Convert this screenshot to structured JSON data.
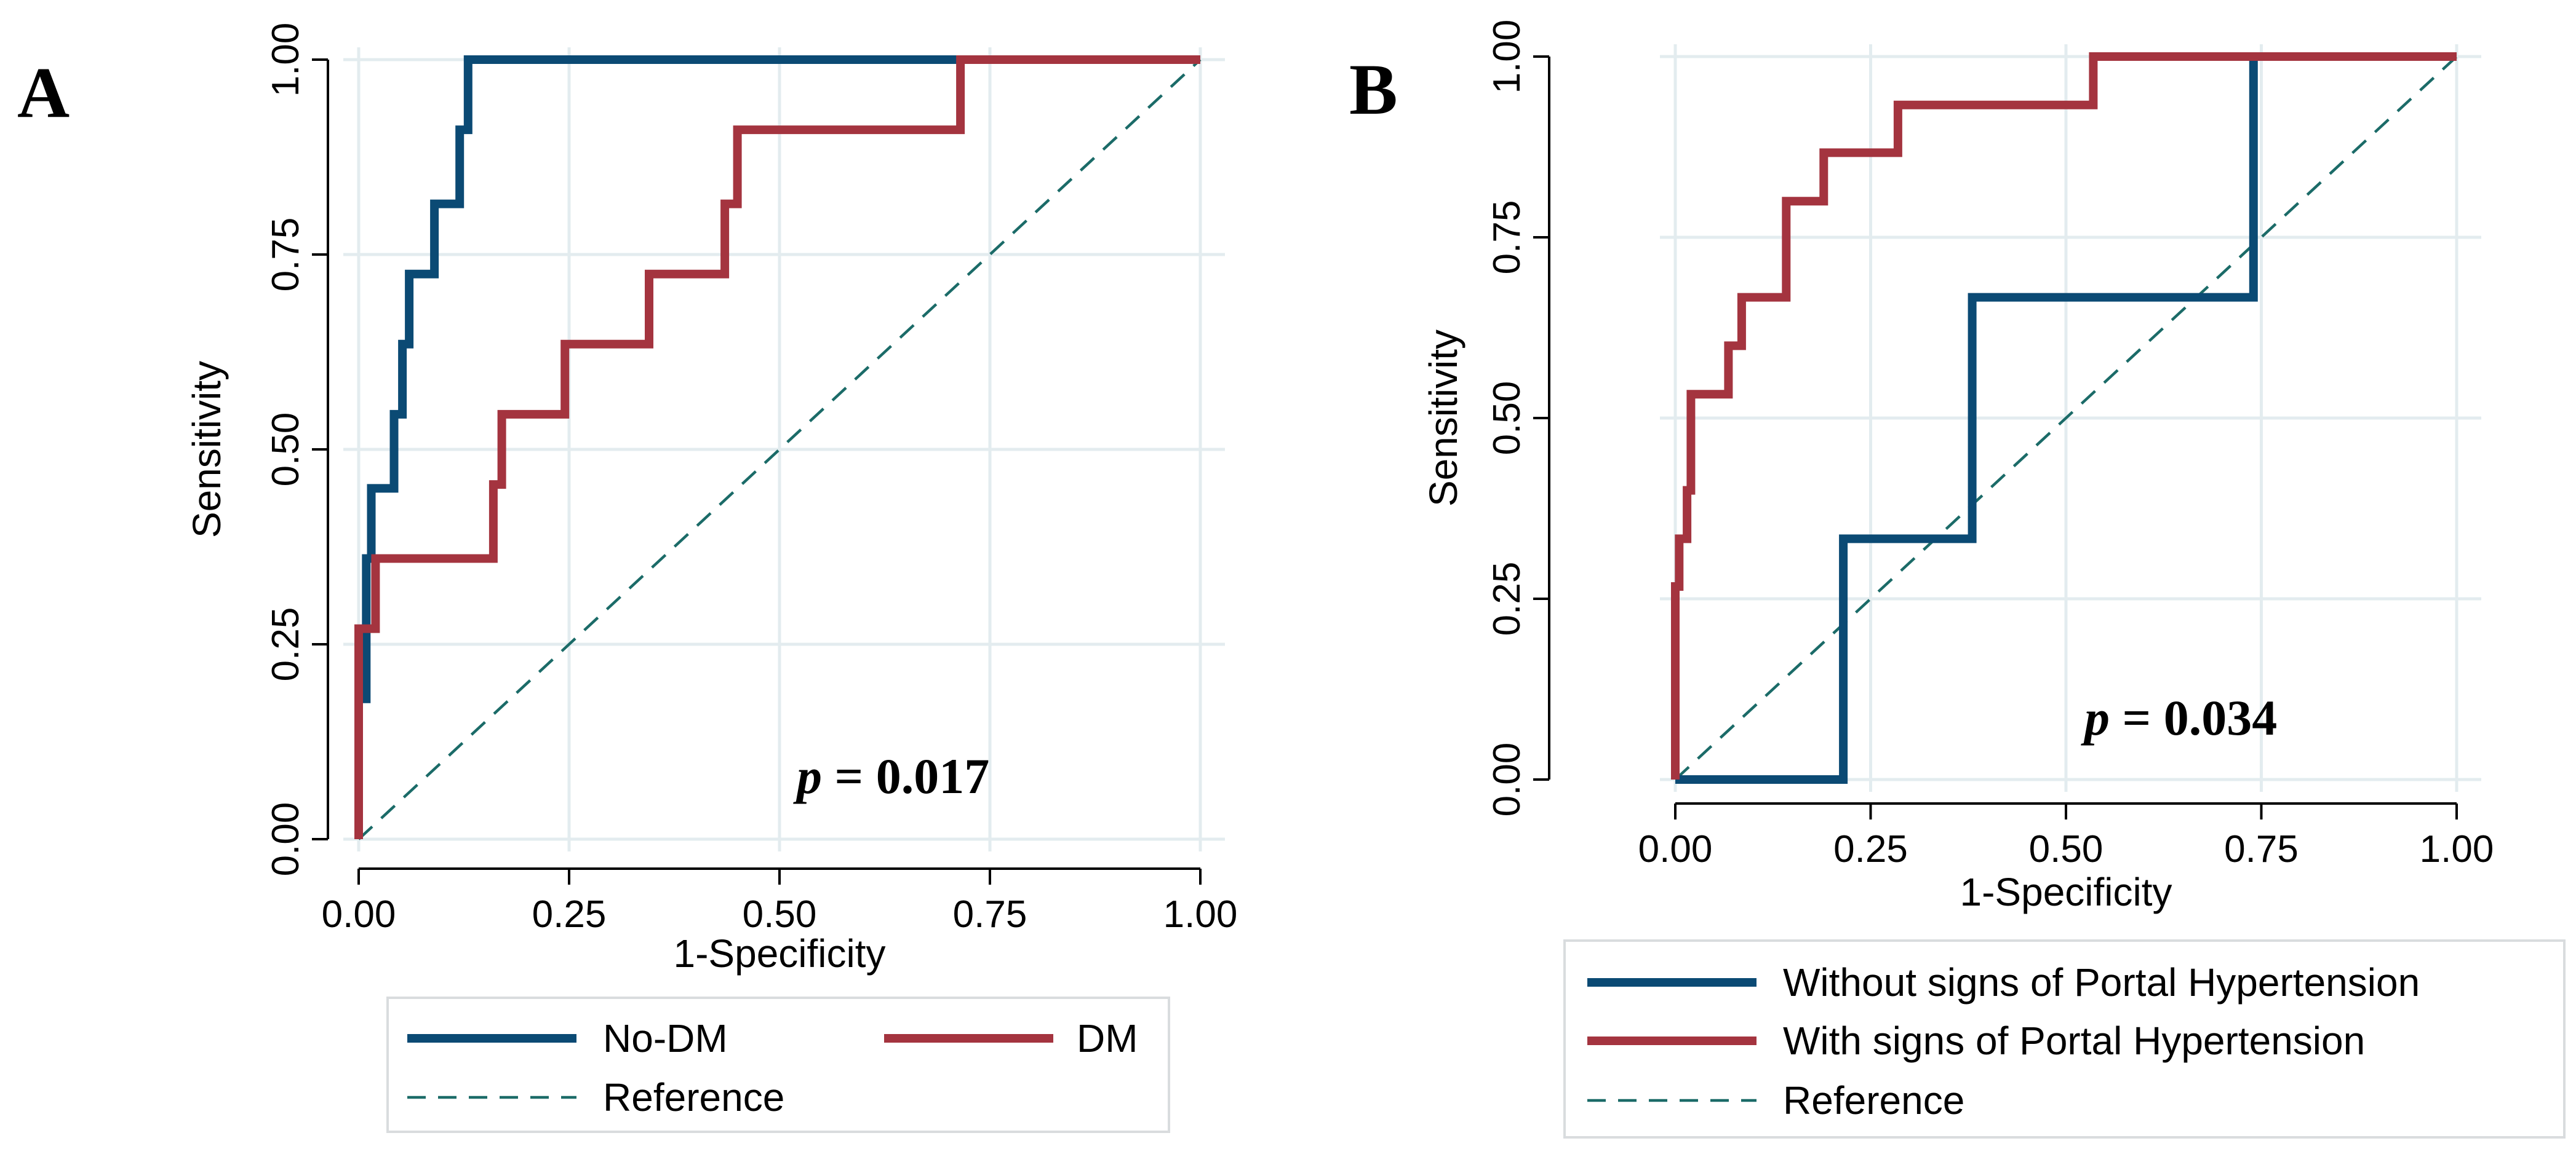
{
  "colors": {
    "series_blue": "#0b4a74",
    "series_red": "#a4343f",
    "reference": "#1b6b68",
    "grid": "#e3ecef",
    "axis": "#000000",
    "legend_border": "#d9dcde"
  },
  "chart_data": [
    {
      "type": "line",
      "panel_label": "A",
      "xlabel": "1-Specificity",
      "ylabel": "Sensitivity",
      "xlim": [
        0,
        1
      ],
      "ylim": [
        0,
        1
      ],
      "xticks": [
        0,
        0.25,
        0.5,
        0.75,
        1
      ],
      "yticks": [
        0,
        0.25,
        0.5,
        0.75,
        1
      ],
      "xtick_labels": [
        "0.00",
        "0.25",
        "0.50",
        "0.75",
        "1.00"
      ],
      "ytick_labels": [
        "0.00",
        "0.25",
        "0.50",
        "0.75",
        "1.00"
      ],
      "grid": true,
      "legend_placement": "below",
      "annotation": {
        "italic": "p",
        "text": " = 0.017"
      },
      "series": [
        {
          "name": "No-DM",
          "style": "solid",
          "color_key": "series_blue",
          "x": [
            0,
            0,
            0.009,
            0.009,
            0.015,
            0.015,
            0.042,
            0.042,
            0.052,
            0.052,
            0.06,
            0.06,
            0.09,
            0.09,
            0.12,
            0.12,
            0.13,
            0.13,
            0.71,
            1.0
          ],
          "y": [
            0,
            0.18,
            0.18,
            0.36,
            0.36,
            0.45,
            0.45,
            0.545,
            0.545,
            0.635,
            0.635,
            0.725,
            0.725,
            0.815,
            0.815,
            0.91,
            0.91,
            1.0,
            1.0,
            1.0
          ]
        },
        {
          "name": "DM",
          "style": "solid",
          "color_key": "series_red",
          "x": [
            0,
            0,
            0.006,
            0.006,
            0.02,
            0.02,
            0.16,
            0.16,
            0.17,
            0.17,
            0.245,
            0.245,
            0.345,
            0.345,
            0.435,
            0.435,
            0.45,
            0.45,
            0.715,
            0.715,
            1.0
          ],
          "y": [
            0,
            0.27,
            0.27,
            0.27,
            0.27,
            0.36,
            0.36,
            0.455,
            0.455,
            0.545,
            0.545,
            0.635,
            0.635,
            0.725,
            0.725,
            0.815,
            0.815,
            0.91,
            0.91,
            1.0,
            1.0
          ]
        },
        {
          "name": "Reference",
          "style": "dashed",
          "color_key": "reference",
          "x": [
            0,
            1
          ],
          "y": [
            0,
            1
          ]
        }
      ]
    },
    {
      "type": "line",
      "panel_label": "B",
      "xlabel": "1-Specificity",
      "ylabel": "Sensitivity",
      "xlim": [
        0,
        1
      ],
      "ylim": [
        0,
        1
      ],
      "xticks": [
        0,
        0.25,
        0.5,
        0.75,
        1
      ],
      "yticks": [
        0,
        0.25,
        0.5,
        0.75,
        1
      ],
      "xtick_labels": [
        "0.00",
        "0.25",
        "0.50",
        "0.75",
        "1.00"
      ],
      "ytick_labels": [
        "0.00",
        "0.25",
        "0.50",
        "0.75",
        "1.00"
      ],
      "grid": true,
      "legend_placement": "below",
      "annotation": {
        "italic": "p",
        "text": " = 0.034"
      },
      "series": [
        {
          "name": "Without signs of Portal Hypertension",
          "style": "solid",
          "color_key": "series_blue",
          "x": [
            0,
            0.215,
            0.215,
            0.38,
            0.38,
            0.74,
            0.74,
            1.0
          ],
          "y": [
            0,
            0,
            0.333,
            0.333,
            0.667,
            0.667,
            1.0,
            1.0
          ]
        },
        {
          "name": "With signs of Portal Hypertension",
          "style": "solid",
          "color_key": "series_red",
          "x": [
            0,
            0,
            0.005,
            0.005,
            0.015,
            0.015,
            0.02,
            0.02,
            0.068,
            0.068,
            0.085,
            0.085,
            0.142,
            0.142,
            0.19,
            0.19,
            0.285,
            0.285,
            0.535,
            0.535,
            1.0
          ],
          "y": [
            0,
            0.267,
            0.267,
            0.333,
            0.333,
            0.4,
            0.4,
            0.533,
            0.533,
            0.6,
            0.6,
            0.667,
            0.667,
            0.8,
            0.8,
            0.867,
            0.867,
            0.933,
            0.933,
            1.0,
            1.0
          ]
        },
        {
          "name": "Reference",
          "style": "dashed",
          "color_key": "reference",
          "x": [
            0,
            1
          ],
          "y": [
            0,
            1
          ]
        }
      ]
    }
  ]
}
